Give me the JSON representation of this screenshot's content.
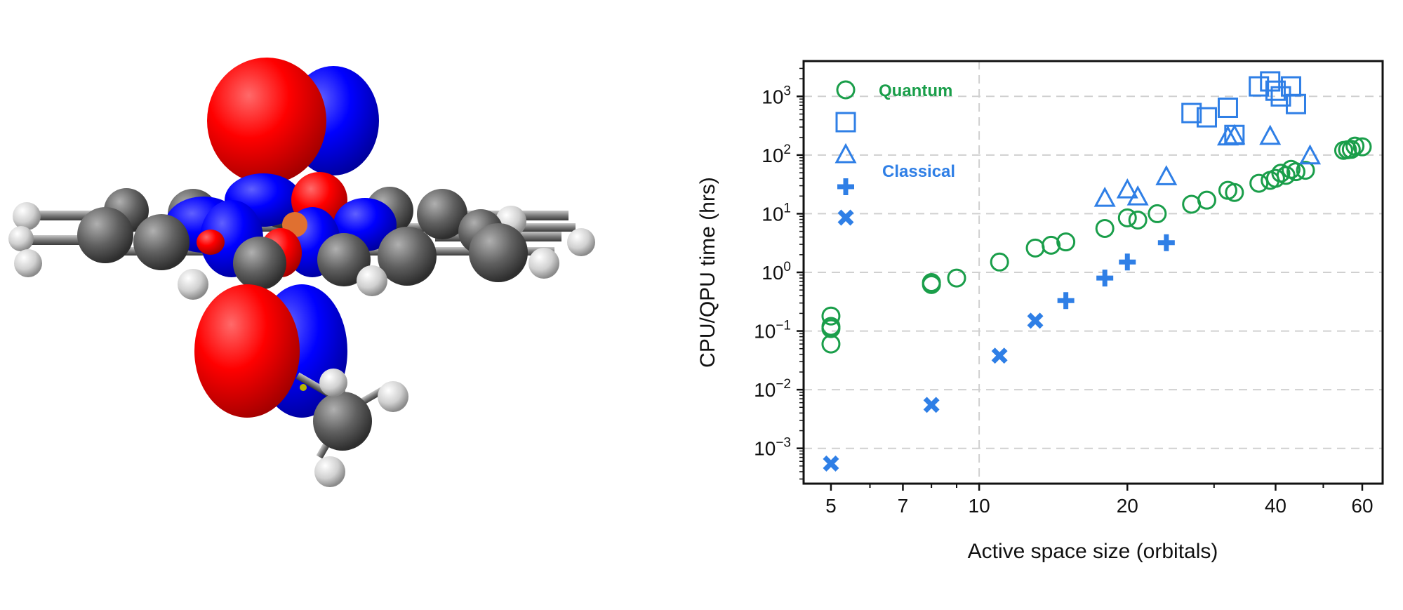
{
  "colors": {
    "quantum": "#1a9e4a",
    "classical": "#2f7fe6",
    "orbital_red": "#ff0000",
    "orbital_blue": "#0000ff",
    "carbon": "#5a5a5a",
    "hydrogen": "#d8d8d8",
    "iron": "#e07030",
    "sulfur": "#b8b800"
  },
  "molecule": {
    "description_icon": "molecule-orbital-render"
  },
  "chart_data": {
    "type": "scatter",
    "xlabel": "Active space size (orbitals)",
    "ylabel": "CPU/QPU time (hrs)",
    "xscale": "log",
    "yscale": "log",
    "xlim": [
      4.4,
      66
    ],
    "ylim": [
      0.00025,
      4000
    ],
    "xticks": [
      5,
      7,
      10,
      20,
      40,
      60
    ],
    "xtick_labels": [
      "5",
      "7",
      "10",
      "20",
      "40",
      "60"
    ],
    "yticks": [
      0.001,
      0.01,
      0.1,
      1,
      10,
      100,
      1000
    ],
    "ytick_labels": [
      {
        "base": "10",
        "exp": "−3"
      },
      {
        "base": "10",
        "exp": "−2"
      },
      {
        "base": "10",
        "exp": "−1"
      },
      {
        "base": "10",
        "exp": "0"
      },
      {
        "base": "10",
        "exp": "1"
      },
      {
        "base": "10",
        "exp": "2"
      },
      {
        "base": "10",
        "exp": "3"
      }
    ],
    "grid": "horizontal dashed at major y ticks; vertical dashed at x=10",
    "legend": {
      "placement": "top-left",
      "groups": [
        {
          "label": "Quantum",
          "color_key": "quantum",
          "markers": [
            "circle"
          ]
        },
        {
          "label": "Classical",
          "color_key": "classical",
          "markers": [
            "square",
            "triangle",
            "plus",
            "x"
          ]
        }
      ]
    },
    "series": [
      {
        "marker": "circle",
        "color_key": "quantum",
        "points": [
          [
            5,
            0.18
          ],
          [
            5,
            0.12
          ],
          [
            5,
            0.11
          ],
          [
            5,
            0.06
          ],
          [
            8,
            0.62
          ],
          [
            8,
            0.67
          ],
          [
            9,
            0.8
          ],
          [
            11,
            1.5
          ],
          [
            13,
            2.6
          ],
          [
            14,
            2.9
          ],
          [
            15,
            3.3
          ],
          [
            18,
            5.6
          ],
          [
            20,
            8.5
          ],
          [
            21,
            7.8
          ],
          [
            23,
            10
          ],
          [
            27,
            14.5
          ],
          [
            29,
            17
          ],
          [
            32,
            25
          ],
          [
            33,
            23
          ],
          [
            37,
            33
          ],
          [
            39,
            37
          ],
          [
            40,
            40
          ],
          [
            41,
            49
          ],
          [
            42,
            45
          ],
          [
            43,
            57
          ],
          [
            44,
            52
          ],
          [
            46,
            55
          ],
          [
            55,
            120
          ],
          [
            56,
            123
          ],
          [
            57,
            125
          ],
          [
            58,
            142
          ],
          [
            60,
            138
          ]
        ]
      },
      {
        "marker": "square",
        "color_key": "classical",
        "points": [
          [
            27,
            520
          ],
          [
            29,
            440
          ],
          [
            32,
            640
          ],
          [
            33,
            220
          ],
          [
            37,
            1480
          ],
          [
            39,
            1800
          ],
          [
            40,
            1250
          ],
          [
            41,
            1000
          ],
          [
            43,
            1480
          ],
          [
            44,
            740
          ]
        ]
      },
      {
        "marker": "triangle",
        "color_key": "classical",
        "points": [
          [
            18,
            18
          ],
          [
            20,
            25
          ],
          [
            21,
            19
          ],
          [
            24,
            42
          ],
          [
            32,
            200
          ],
          [
            33,
            210
          ],
          [
            39,
            205
          ],
          [
            47,
            95
          ]
        ]
      },
      {
        "marker": "plus",
        "color_key": "classical",
        "points": [
          [
            15,
            0.33
          ],
          [
            18,
            0.8
          ],
          [
            20,
            1.5
          ],
          [
            24,
            3.2
          ]
        ]
      },
      {
        "marker": "x",
        "color_key": "classical",
        "points": [
          [
            5,
            0.00055
          ],
          [
            8,
            0.0055
          ],
          [
            11,
            0.038
          ],
          [
            13,
            0.15
          ]
        ]
      }
    ]
  }
}
